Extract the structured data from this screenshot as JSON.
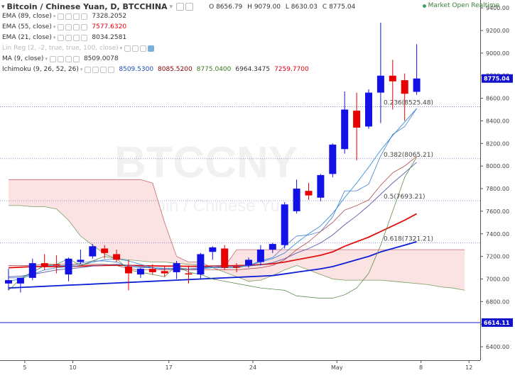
{
  "header": {
    "symbol": "Bitcoin / Chinese Yuan, D, BTCCHINA",
    "open_label": "O",
    "open": "8656.79",
    "high_label": "H",
    "high": "9079.00",
    "low_label": "L",
    "low": "8630.03",
    "close_label": "C",
    "close": "8775.04",
    "status": "Market Open Realtime",
    "watermark_big": "BTCCNY",
    "watermark_small": "Bitcoin / Chinese Yuan"
  },
  "indicators": [
    {
      "label": "EMA (89, close)",
      "values": [
        "7328.2052"
      ],
      "colors": [
        "#333333"
      ]
    },
    {
      "label": "EMA (55, close)",
      "values": [
        "7577.6320"
      ],
      "colors": [
        "#e3000f"
      ]
    },
    {
      "label": "EMA (21, close)",
      "values": [
        "8034.2581"
      ],
      "colors": [
        "#333333"
      ]
    },
    {
      "label": "Lin Reg (2, -2, true, true, 100, close)",
      "values": [],
      "colors": []
    },
    {
      "label": "MA (9, close)",
      "values": [
        "8509.0078"
      ],
      "colors": [
        "#333333"
      ]
    },
    {
      "label": "Ichimoku (9, 26, 52, 26)",
      "values": [
        "8509.5300",
        "8085.5200",
        "8775.0400",
        "6964.3475",
        "7259.7700"
      ],
      "colors": [
        "#1f4fb5",
        "#8b0000",
        "#3d7a22",
        "#333333",
        "#e3000f"
      ]
    }
  ],
  "colors": {
    "up": "#1212e6",
    "down": "#e60000",
    "ema89": "#0b1ed6",
    "ema55": "#e01010",
    "ema21": "#5a5aa8",
    "ma9": "#3a8fd6",
    "cloud_bull": "#e6f3e2",
    "cloud_bear": "#fbe3e3"
  },
  "axis": {
    "ticks": [
      "9400.00",
      "9200.00",
      "9000.00",
      "8800.00",
      "8600.00",
      "8400.00",
      "8200.00",
      "8000.00",
      "7800.00",
      "7600.00",
      "7400.00",
      "7200.00",
      "7000.00",
      "6800.00",
      "6600.00",
      "6400.00"
    ],
    "last_price": "8775.04",
    "level_price": "6614.11",
    "x_labels": [
      "5",
      "10",
      "17",
      "24",
      "May",
      "8",
      "12"
    ]
  },
  "chart_data": {
    "type": "candlestick",
    "ylim": [
      6300,
      9470
    ],
    "candles": [
      {
        "o": 6960,
        "h": 7090,
        "l": 6900,
        "c": 6990
      },
      {
        "o": 6960,
        "h": 7010,
        "l": 6880,
        "c": 7010
      },
      {
        "o": 7010,
        "h": 7180,
        "l": 6990,
        "c": 7140
      },
      {
        "o": 7140,
        "h": 7220,
        "l": 7080,
        "c": 7110
      },
      {
        "o": 7130,
        "h": 7210,
        "l": 7050,
        "c": 7120
      },
      {
        "o": 7040,
        "h": 7190,
        "l": 6980,
        "c": 7180
      },
      {
        "o": 7150,
        "h": 7260,
        "l": 7130,
        "c": 7170
      },
      {
        "o": 7200,
        "h": 7310,
        "l": 7180,
        "c": 7290
      },
      {
        "o": 7270,
        "h": 7300,
        "l": 7180,
        "c": 7230
      },
      {
        "o": 7220,
        "h": 7260,
        "l": 7150,
        "c": 7170
      },
      {
        "o": 7110,
        "h": 7170,
        "l": 6900,
        "c": 7050
      },
      {
        "o": 7040,
        "h": 7100,
        "l": 7010,
        "c": 7090
      },
      {
        "o": 7090,
        "h": 7130,
        "l": 7040,
        "c": 7060
      },
      {
        "o": 7070,
        "h": 7110,
        "l": 7020,
        "c": 7050
      },
      {
        "o": 7060,
        "h": 7160,
        "l": 7000,
        "c": 7140
      },
      {
        "o": 7050,
        "h": 7120,
        "l": 6960,
        "c": 7040
      },
      {
        "o": 7040,
        "h": 7230,
        "l": 7000,
        "c": 7220
      },
      {
        "o": 7240,
        "h": 7290,
        "l": 7170,
        "c": 7280
      },
      {
        "o": 7270,
        "h": 7300,
        "l": 7080,
        "c": 7100
      },
      {
        "o": 7110,
        "h": 7140,
        "l": 7060,
        "c": 7100
      },
      {
        "o": 7120,
        "h": 7190,
        "l": 7100,
        "c": 7170
      },
      {
        "o": 7150,
        "h": 7300,
        "l": 7120,
        "c": 7260
      },
      {
        "o": 7260,
        "h": 7320,
        "l": 7230,
        "c": 7310
      },
      {
        "o": 7300,
        "h": 7680,
        "l": 7270,
        "c": 7660
      },
      {
        "o": 7600,
        "h": 7880,
        "l": 7580,
        "c": 7800
      },
      {
        "o": 7780,
        "h": 7850,
        "l": 7700,
        "c": 7740
      },
      {
        "o": 7720,
        "h": 7930,
        "l": 7690,
        "c": 7920
      },
      {
        "o": 7930,
        "h": 8200,
        "l": 7900,
        "c": 8190
      },
      {
        "o": 8150,
        "h": 8660,
        "l": 8110,
        "c": 8500
      },
      {
        "o": 8490,
        "h": 8650,
        "l": 8050,
        "c": 8340
      },
      {
        "o": 8350,
        "h": 8680,
        "l": 8330,
        "c": 8650
      },
      {
        "o": 8650,
        "h": 9270,
        "l": 8380,
        "c": 8800
      },
      {
        "o": 8800,
        "h": 8940,
        "l": 8500,
        "c": 8750
      },
      {
        "o": 8760,
        "h": 8820,
        "l": 8400,
        "c": 8640
      },
      {
        "o": 8657,
        "h": 9079,
        "l": 8630,
        "c": 8775
      }
    ],
    "fibonacci": [
      {
        "label": "0.236(8525.48)",
        "price": 8525.48
      },
      {
        "label": "0.382(8065.21)",
        "price": 8065.21
      },
      {
        "label": "0.5(7693.21)",
        "price": 7693.21
      },
      {
        "label": "0.618(7321.21)",
        "price": 7321.21
      }
    ],
    "horizontal_level": 6614.11,
    "series": [
      {
        "name": "EMA (89, close)",
        "from": 0,
        "values": [
          6920,
          6925,
          6930,
          6935,
          6940,
          6945,
          6950,
          6955,
          6960,
          6965,
          6970,
          6975,
          6980,
          6985,
          6990,
          6995,
          7000,
          7005,
          7010,
          7015,
          7020,
          7025,
          7030,
          7045,
          7060,
          7075,
          7090,
          7110,
          7140,
          7170,
          7200,
          7240,
          7270,
          7300,
          7330
        ]
      },
      {
        "name": "EMA (55, close)",
        "from": 0,
        "values": [
          7100,
          7105,
          7110,
          7110,
          7110,
          7112,
          7114,
          7118,
          7120,
          7122,
          7120,
          7118,
          7116,
          7114,
          7114,
          7112,
          7112,
          7114,
          7116,
          7118,
          7122,
          7128,
          7135,
          7150,
          7170,
          7190,
          7210,
          7240,
          7290,
          7330,
          7370,
          7420,
          7470,
          7520,
          7578
        ]
      },
      {
        "name": "EMA (21, close)",
        "from": 0,
        "values": [
          7020,
          7025,
          7040,
          7060,
          7080,
          7090,
          7100,
          7115,
          7125,
          7130,
          7120,
          7110,
          7100,
          7095,
          7095,
          7090,
          7100,
          7110,
          7110,
          7110,
          7115,
          7125,
          7145,
          7180,
          7230,
          7270,
          7320,
          7390,
          7480,
          7560,
          7650,
          7750,
          7850,
          7940,
          8034
        ]
      },
      {
        "name": "MA (9, close)",
        "from": 0,
        "values": [
          6980,
          7000,
          7040,
          7080,
          7100,
          7110,
          7120,
          7150,
          7170,
          7180,
          7160,
          7130,
          7100,
          7090,
          7090,
          7080,
          7090,
          7110,
          7110,
          7110,
          7120,
          7150,
          7180,
          7230,
          7320,
          7400,
          7470,
          7580,
          7720,
          7850,
          7990,
          8140,
          8270,
          8390,
          8509
        ]
      },
      {
        "name": "Tenkan",
        "from": 0,
        "values": [
          7010,
          7010,
          7060,
          7120,
          7120,
          7120,
          7140,
          7160,
          7160,
          7150,
          7110,
          7100,
          7100,
          7080,
          7080,
          7080,
          7090,
          7100,
          7100,
          7100,
          7120,
          7160,
          7190,
          7290,
          7380,
          7390,
          7420,
          7550,
          7780,
          7780,
          7840,
          8090,
          8280,
          8350,
          8510
        ]
      },
      {
        "name": "Kijun",
        "from": 0,
        "values": [
          7120,
          7120,
          7120,
          7130,
          7130,
          7130,
          7130,
          7130,
          7130,
          7120,
          7090,
          7080,
          7080,
          7080,
          7080,
          7080,
          7080,
          7080,
          7080,
          7080,
          7090,
          7100,
          7120,
          7170,
          7260,
          7330,
          7420,
          7500,
          7610,
          7650,
          7700,
          7830,
          7940,
          8000,
          8086
        ]
      },
      {
        "name": "Chikou",
        "from": 0,
        "values": [
          6900,
          7000,
          7060,
          7120,
          7130,
          7180,
          7120,
          7160,
          7200,
          7180,
          7080,
          7060,
          7040,
          7020,
          7120,
          7060,
          7040,
          7000,
          6980,
          6960,
          6940,
          6920,
          6910,
          6900,
          6850,
          6840,
          6830,
          6830,
          6860,
          6920,
          7050,
          7300,
          7600,
          7900,
          8080
        ]
      },
      {
        "name": "Span A",
        "from": 0,
        "values": [
          7650,
          7650,
          7640,
          7640,
          7620,
          7520,
          7380,
          7300,
          7220,
          7180,
          7170,
          7160,
          7150,
          7150,
          7140,
          7130,
          7120,
          7100,
          7060,
          7020,
          6980,
          6990,
          7030,
          7080,
          7120,
          7080,
          7040,
          7000,
          6990,
          6990,
          6990,
          6990,
          6980,
          6970,
          6960,
          6950,
          6930,
          6920,
          6900
        ]
      },
      {
        "name": "Span B",
        "from": 0,
        "values": [
          7880,
          7880,
          7880,
          7880,
          7880,
          7880,
          7880,
          7880,
          7880,
          7880,
          7880,
          7880,
          7850,
          7500,
          7200,
          7150,
          7150,
          7100,
          7110,
          7260,
          7260,
          7260,
          7260,
          7260,
          7260,
          7260,
          7260,
          7260,
          7260,
          7260,
          7260,
          7260,
          7260,
          7260,
          7260,
          7260,
          7260,
          7260,
          7260
        ]
      }
    ]
  }
}
